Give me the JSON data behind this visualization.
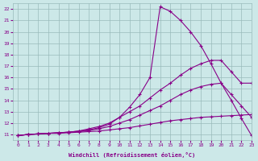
{
  "xlabel": "Windchill (Refroidissement éolien,°C)",
  "xlim": [
    -0.5,
    23
  ],
  "ylim": [
    10.5,
    22.5
  ],
  "xticks": [
    0,
    1,
    2,
    3,
    4,
    5,
    6,
    7,
    8,
    9,
    10,
    11,
    12,
    13,
    14,
    15,
    16,
    17,
    18,
    19,
    20,
    21,
    22,
    23
  ],
  "yticks": [
    11,
    12,
    13,
    14,
    15,
    16,
    17,
    18,
    19,
    20,
    21,
    22
  ],
  "bg_color": "#cce8e8",
  "line_color": "#880088",
  "grid_color": "#99bbbb",
  "lines": [
    {
      "x": [
        0,
        1,
        2,
        3,
        4,
        5,
        6,
        7,
        8,
        9,
        10,
        11,
        12,
        13,
        14,
        15,
        16,
        17,
        18,
        19,
        20,
        21,
        22,
        23
      ],
      "y": [
        10.9,
        11.0,
        11.05,
        11.1,
        11.15,
        11.2,
        11.3,
        11.4,
        11.6,
        11.9,
        12.5,
        13.4,
        14.5,
        16.0,
        22.2,
        21.8,
        21.0,
        20.0,
        18.8,
        17.2,
        15.5,
        14.0,
        12.4,
        10.9
      ]
    },
    {
      "x": [
        0,
        1,
        2,
        3,
        4,
        5,
        6,
        7,
        8,
        9,
        10,
        11,
        12,
        13,
        14,
        15,
        16,
        17,
        18,
        19,
        20,
        21,
        22,
        23
      ],
      "y": [
        10.9,
        11.0,
        11.05,
        11.1,
        11.15,
        11.2,
        11.3,
        11.5,
        11.7,
        12.0,
        12.5,
        13.0,
        13.5,
        14.2,
        14.9,
        15.5,
        16.2,
        16.8,
        17.2,
        17.5,
        17.5,
        16.5,
        15.5,
        15.5
      ]
    },
    {
      "x": [
        0,
        1,
        2,
        3,
        4,
        5,
        6,
        7,
        8,
        9,
        10,
        11,
        12,
        13,
        14,
        15,
        16,
        17,
        18,
        19,
        20,
        21,
        22,
        23
      ],
      "y": [
        10.9,
        11.0,
        11.05,
        11.1,
        11.15,
        11.2,
        11.25,
        11.35,
        11.5,
        11.7,
        12.0,
        12.3,
        12.7,
        13.1,
        13.5,
        14.0,
        14.5,
        14.9,
        15.2,
        15.4,
        15.5,
        14.5,
        13.5,
        12.5
      ]
    },
    {
      "x": [
        0,
        1,
        2,
        3,
        4,
        5,
        6,
        7,
        8,
        9,
        10,
        11,
        12,
        13,
        14,
        15,
        16,
        17,
        18,
        19,
        20,
        21,
        22,
        23
      ],
      "y": [
        10.9,
        11.0,
        11.05,
        11.1,
        11.1,
        11.15,
        11.2,
        11.25,
        11.3,
        11.4,
        11.5,
        11.6,
        11.75,
        11.9,
        12.05,
        12.2,
        12.3,
        12.4,
        12.5,
        12.55,
        12.6,
        12.65,
        12.7,
        12.75
      ]
    }
  ]
}
